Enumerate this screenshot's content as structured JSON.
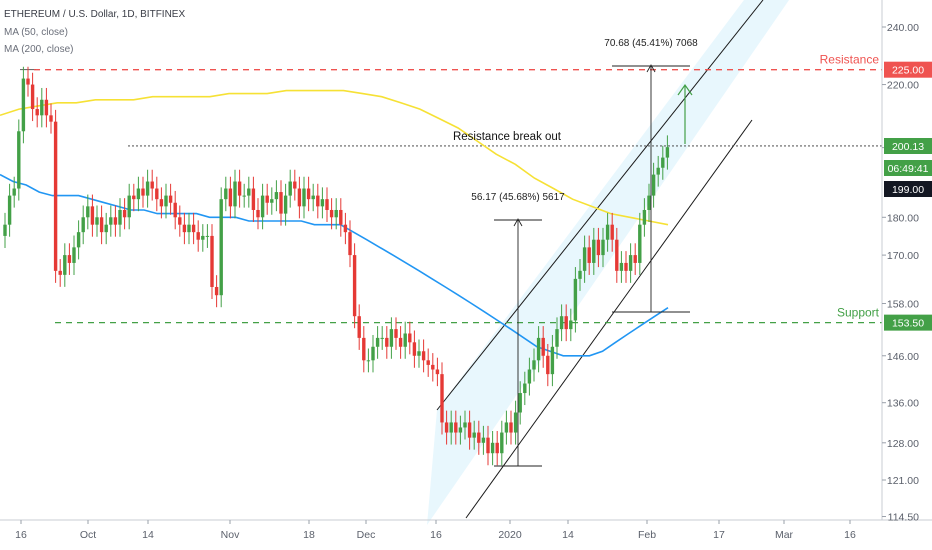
{
  "legend": {
    "title": "ETHEREUM / U.S. Dollar, 1D, BITFINEX",
    "ma50": "MA (50, close)",
    "ma200": "MA (200, close)"
  },
  "colors": {
    "up": "#43a047",
    "down": "#e53935",
    "ma50": "#2196f3",
    "ma200": "#f6e135",
    "channel_fill": "#e8f7fd",
    "resistance": "#ef5350",
    "support": "#43a047"
  },
  "annotations": {
    "resistance_label": "Resistance",
    "support_label": "Support",
    "breakout_label": "Resistance break out",
    "measure_1": "56.17 (45.68%) 5617",
    "measure_2": "70.68 (45.41%) 7068"
  },
  "price_tags": {
    "resistance": "225.00",
    "current": "200.13",
    "countdown": "06:49:41",
    "prev_close": "199.00",
    "support": "153.50"
  },
  "chart_data": {
    "type": "candlestick",
    "y_scale": "log",
    "ylim": [
      114.5,
      255
    ],
    "y_ticks": [
      "240.00",
      "220.00",
      "200.00",
      "180.00",
      "170.00",
      "158.00",
      "146.00",
      "136.00",
      "128.00",
      "121.00",
      "114.50"
    ],
    "x_ticks": [
      "16",
      "Oct",
      "14",
      "Nov",
      "18",
      "Dec",
      "16",
      "2020",
      "14",
      "Feb",
      "17",
      "Mar",
      "16"
    ],
    "levels": {
      "resistance": 225.0,
      "support": 153.5,
      "breakout": 200.5
    },
    "series": [
      {
        "name": "ETH/USD",
        "open": [
          175,
          178,
          186,
          188,
          205,
          222,
          220,
          212,
          210,
          215,
          210,
          208,
          166,
          165,
          170,
          168,
          172,
          176,
          180,
          183,
          178,
          180,
          176,
          178,
          180,
          178,
          182,
          180,
          186,
          185,
          188,
          186,
          190,
          188,
          185,
          183,
          186,
          184,
          180,
          178,
          176,
          178,
          176,
          174,
          175,
          175,
          162,
          160,
          185,
          188,
          183,
          190,
          186,
          186,
          188,
          182,
          180,
          186,
          184,
          185,
          187,
          181,
          186,
          190,
          188,
          183,
          188,
          185,
          186,
          183,
          185,
          182,
          180,
          182,
          178,
          176,
          170,
          155,
          150,
          145,
          145,
          148,
          150,
          150,
          148,
          152,
          150,
          148,
          151,
          149,
          146,
          147,
          145,
          144,
          143,
          142,
          132,
          130,
          132,
          130,
          131,
          132,
          129,
          130,
          128,
          129,
          126,
          128,
          126,
          130,
          132,
          130,
          134,
          138,
          140,
          143,
          145,
          150,
          146,
          142,
          148,
          152,
          155,
          152,
          154,
          164,
          166,
          172,
          168,
          174,
          170,
          174,
          178,
          174,
          166,
          168,
          166,
          170,
          168,
          178,
          182,
          186,
          192,
          194,
          197
        ],
        "close": [
          178,
          186,
          188,
          205,
          222,
          220,
          212,
          210,
          215,
          210,
          208,
          166,
          165,
          170,
          168,
          172,
          176,
          180,
          183,
          178,
          180,
          176,
          178,
          180,
          178,
          182,
          180,
          186,
          185,
          188,
          186,
          190,
          188,
          185,
          183,
          186,
          184,
          180,
          178,
          176,
          178,
          176,
          174,
          175,
          175,
          162,
          160,
          185,
          188,
          183,
          190,
          186,
          186,
          188,
          182,
          180,
          186,
          184,
          185,
          187,
          181,
          186,
          190,
          188,
          183,
          188,
          185,
          186,
          183,
          185,
          182,
          180,
          182,
          178,
          176,
          170,
          155,
          150,
          145,
          145,
          148,
          150,
          150,
          148,
          152,
          150,
          148,
          151,
          149,
          146,
          147,
          145,
          144,
          143,
          142,
          132,
          130,
          132,
          130,
          131,
          132,
          129,
          130,
          128,
          129,
          126,
          128,
          126,
          130,
          132,
          130,
          134,
          138,
          140,
          143,
          145,
          150,
          146,
          142,
          148,
          152,
          155,
          152,
          154,
          164,
          166,
          172,
          168,
          174,
          170,
          174,
          178,
          174,
          166,
          168,
          166,
          170,
          168,
          178,
          182,
          186,
          192,
          194,
          197,
          200.13
        ]
      },
      {
        "name": "MA (50, close)",
        "values": [
          192,
          190,
          189,
          187,
          186,
          186,
          186,
          185,
          184,
          183,
          182,
          182,
          181,
          181,
          181,
          181,
          180,
          180,
          180,
          179,
          179,
          179,
          179,
          179,
          178,
          178,
          178,
          176,
          174,
          172,
          170,
          168,
          166,
          164,
          162,
          160,
          158,
          156,
          154,
          152,
          150,
          148,
          147,
          146,
          146,
          146,
          147,
          149,
          151,
          153,
          155,
          157
        ]
      },
      {
        "name": "MA (200, close)",
        "values": [
          210,
          212,
          213,
          214,
          214,
          215,
          215,
          215,
          216,
          216,
          216,
          216,
          217,
          217,
          217,
          218,
          218,
          218,
          218,
          217,
          216,
          214,
          212,
          209,
          206,
          202,
          198,
          195,
          191,
          188,
          185,
          183,
          181,
          180,
          179,
          178
        ]
      }
    ]
  }
}
